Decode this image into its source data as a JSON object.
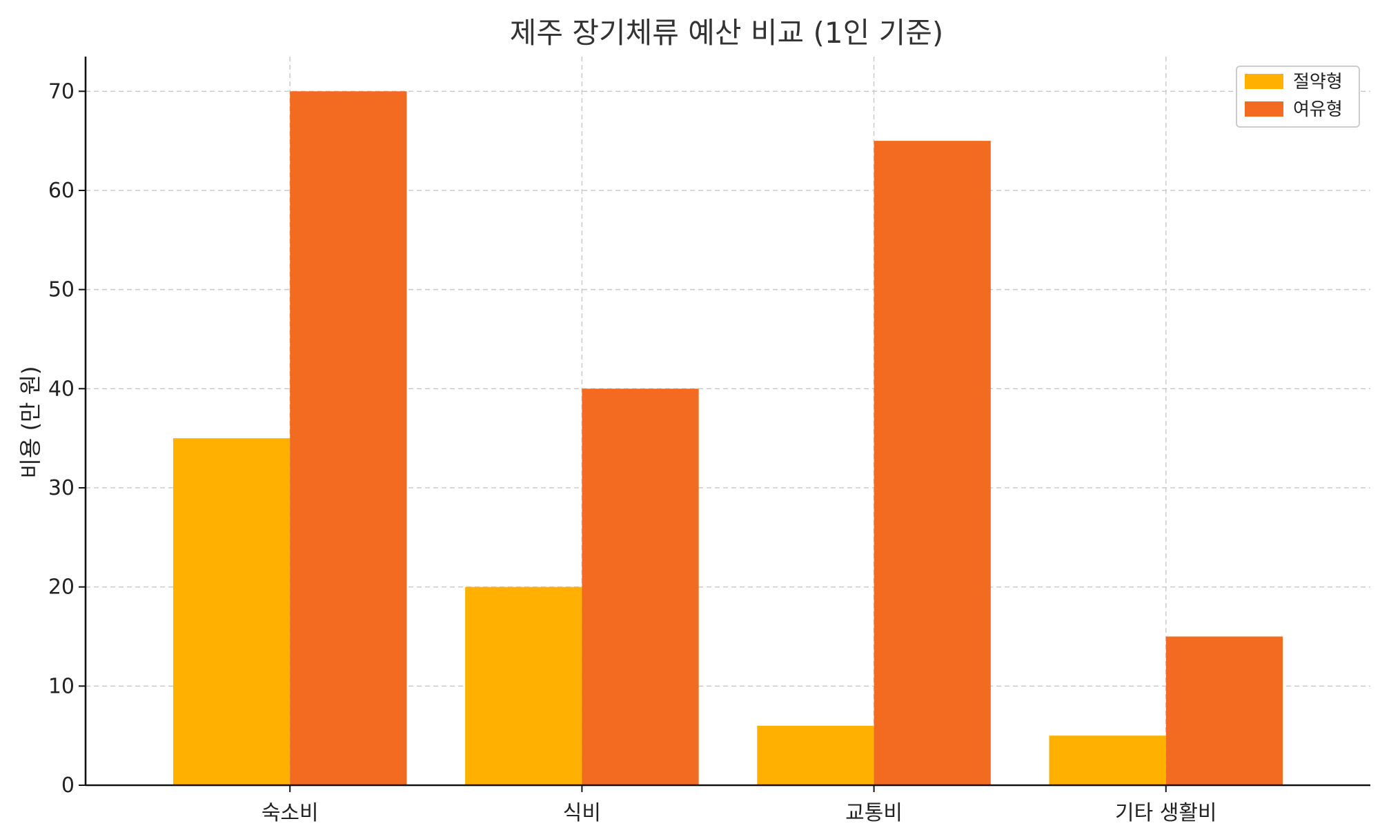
{
  "chart_data": {
    "type": "bar",
    "title": "제주 장기체류 예산 비교 (1인 기준)",
    "xlabel": "",
    "ylabel": "비용 (만 원)",
    "categories": [
      "숙소비",
      "식비",
      "교통비",
      "기타 생활비"
    ],
    "series": [
      {
        "name": "절약형",
        "color": "#FFB000",
        "values": [
          35,
          20,
          6,
          5
        ]
      },
      {
        "name": "여유형",
        "color": "#F26B21",
        "values": [
          70,
          40,
          65,
          15
        ]
      }
    ],
    "ylim": [
      0,
      73.5
    ],
    "yticks": [
      0,
      10,
      20,
      30,
      40,
      50,
      60,
      70
    ],
    "grid": true,
    "legend_position": "top-right"
  }
}
